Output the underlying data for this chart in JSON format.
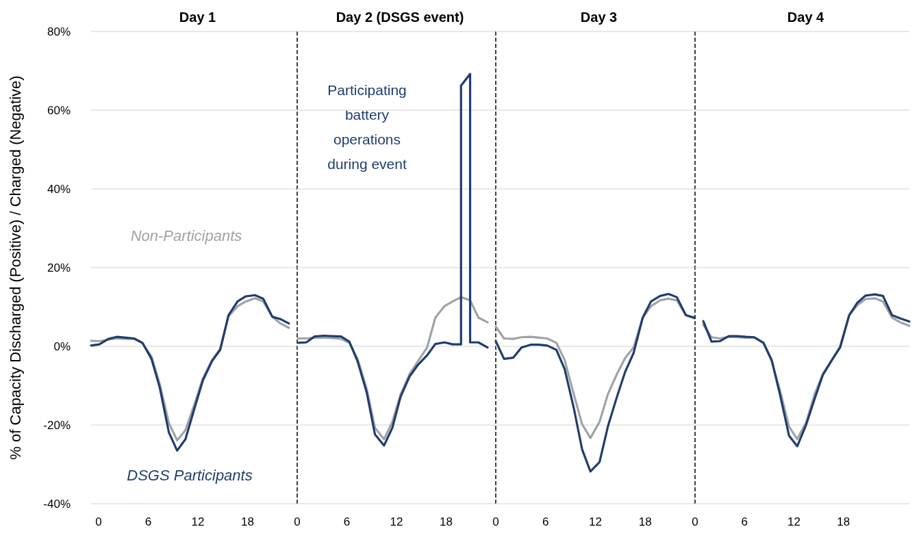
{
  "chart_data": [
    {
      "type": "line",
      "title": "Day 1",
      "ylabel": "% of Capacity Discharged (Positive) / Charged (Negative)",
      "x": [
        -0.9,
        0.1,
        1.2,
        2.2,
        3.3,
        4.3,
        5.3,
        6.4,
        7.4,
        8.5,
        9.5,
        10.5,
        11.6,
        12.6,
        13.7,
        14.7,
        15.7,
        16.8,
        17.8,
        18.9,
        19.9,
        21.0,
        22.0,
        23.0
      ],
      "xlim": [
        -0.9,
        24
      ],
      "xticks": [
        0,
        6,
        12,
        18
      ],
      "ylim": [
        -40,
        80
      ],
      "yticks": [
        {
          "value": -40,
          "label": "-40%"
        },
        {
          "value": -20,
          "label": "-20%"
        },
        {
          "value": 0,
          "label": "0%"
        },
        {
          "value": 20,
          "label": "20%"
        },
        {
          "value": 40,
          "label": "40%"
        },
        {
          "value": 60,
          "label": "60%"
        },
        {
          "value": 80,
          "label": "80%"
        }
      ],
      "grid": "y",
      "marker": "none",
      "line_style": "solid",
      "series": [
        {
          "color": "#9ea3a8",
          "values": [
            1.4,
            1.3,
            1.7,
            2.0,
            1.9,
            1.9,
            0.8,
            -2.6,
            -9.6,
            -19.5,
            -23.9,
            -21.3,
            -14.6,
            -8.2,
            -3.5,
            -0.6,
            7.6,
            10.2,
            11.4,
            12.2,
            11.4,
            7.5,
            5.8,
            4.7
          ]
        },
        {
          "color": "#1f3d6e",
          "values": [
            0.2,
            0.5,
            1.9,
            2.4,
            2.2,
            2.0,
            0.9,
            -3.2,
            -10.5,
            -21.9,
            -26.5,
            -23.6,
            -15.7,
            -8.7,
            -3.8,
            -0.9,
            7.9,
            11.4,
            12.7,
            13.0,
            12.1,
            7.5,
            6.9,
            5.8
          ]
        }
      ],
      "ref_lines": [
        {
          "axis": "x",
          "value": 24,
          "color": "#000000",
          "line_style": "dashed"
        }
      ],
      "annotations": [
        "Non-Participants",
        "DSGS Participants"
      ]
    },
    {
      "type": "line",
      "title": "Day 2 (DSGS event)",
      "x": [
        0.1,
        1.1,
        2.1,
        3.2,
        4.2,
        5.3,
        6.3,
        7.3,
        8.4,
        9.4,
        10.5,
        11.5,
        12.5,
        13.6,
        14.6,
        15.7,
        16.7,
        17.8,
        18.8,
        19.8,
        20.9,
        21.9,
        23.0
      ],
      "xlim": [
        0,
        24
      ],
      "xticks": [
        0,
        6,
        12,
        18
      ],
      "ylim": [
        -40,
        80
      ],
      "yticks": [
        -40,
        -20,
        0,
        20,
        40,
        60,
        80
      ],
      "tick_labels": "x",
      "grid": "y",
      "marker": "none",
      "line_style": "solid",
      "series": [
        {
          "color": "#9ea3a8",
          "values": [
            2.0,
            2.0,
            2.2,
            2.2,
            2.1,
            1.9,
            0.9,
            -3.2,
            -10.8,
            -20.7,
            -23.6,
            -19.2,
            -12.2,
            -7.0,
            -3.8,
            -0.3,
            7.3,
            10.2,
            11.4,
            12.5,
            11.7,
            7.3,
            6.1
          ]
        },
        {
          "color": "#1f3d6e",
          "x": [
            0.1,
            1.1,
            2.1,
            3.2,
            4.2,
            5.3,
            6.3,
            7.3,
            8.4,
            9.4,
            10.5,
            11.5,
            12.5,
            13.6,
            14.6,
            15.7,
            16.7,
            17.8,
            18.8,
            19.8,
            19.8,
            20.9,
            20.9,
            21.9,
            23.0
          ],
          "values": [
            0.9,
            1.0,
            2.5,
            2.7,
            2.6,
            2.5,
            1.2,
            -3.8,
            -11.7,
            -22.4,
            -25.2,
            -20.7,
            -12.8,
            -7.6,
            -4.7,
            -2.3,
            0.6,
            1.0,
            0.5,
            0.5,
            66.2,
            69.2,
            1.0,
            1.0,
            -0.3
          ]
        }
      ],
      "ref_lines": [
        {
          "axis": "x",
          "value": 24,
          "color": "#000000",
          "line_style": "dashed"
        }
      ],
      "annotations": [
        "Participating\nbattery\noperations\nduring event"
      ]
    },
    {
      "type": "line",
      "title": "Day 3",
      "x": [
        0.0,
        1.0,
        2.1,
        3.1,
        4.2,
        5.2,
        6.2,
        7.3,
        8.3,
        9.4,
        10.4,
        11.4,
        12.5,
        13.5,
        14.6,
        15.6,
        16.6,
        17.7,
        18.7,
        19.8,
        20.8,
        21.8,
        22.9,
        23.9
      ],
      "xlim": [
        0,
        24
      ],
      "xticks": [
        0,
        6,
        12,
        18
      ],
      "ylim": [
        -40,
        80
      ],
      "yticks": [
        -40,
        -20,
        0,
        20,
        40,
        60,
        80
      ],
      "tick_labels": "x",
      "grid": "y",
      "marker": "none",
      "line_style": "solid",
      "series": [
        {
          "color": "#9ea3a8",
          "values": [
            5.0,
            2.0,
            1.9,
            2.3,
            2.4,
            2.2,
            2.0,
            0.9,
            -3.5,
            -12.2,
            -19.8,
            -23.3,
            -19.2,
            -12.2,
            -7.0,
            -2.9,
            -0.3,
            7.3,
            10.2,
            11.7,
            12.1,
            11.7,
            7.9,
            7.1
          ]
        },
        {
          "color": "#1f3d6e",
          "values": [
            1.3,
            -3.2,
            -2.9,
            -0.3,
            0.4,
            0.4,
            0.2,
            -0.9,
            -5.8,
            -15.7,
            -26.2,
            -31.8,
            -29.4,
            -20.4,
            -12.8,
            -6.4,
            -1.7,
            7.3,
            11.4,
            12.8,
            13.3,
            12.5,
            7.9,
            7.3
          ]
        }
      ],
      "ref_lines": [
        {
          "axis": "x",
          "value": 24,
          "color": "#000000",
          "line_style": "dashed"
        }
      ]
    },
    {
      "type": "line",
      "title": "Day 4",
      "x": [
        1.0,
        2.0,
        3.0,
        4.1,
        5.1,
        6.2,
        7.2,
        8.3,
        9.3,
        10.3,
        11.4,
        12.4,
        13.5,
        14.5,
        15.5,
        16.6,
        17.6,
        18.7,
        19.7,
        20.7,
        21.8,
        22.8,
        23.9,
        24.9,
        26.0
      ],
      "xlim": [
        0,
        26
      ],
      "xticks": [
        0,
        6,
        12,
        18
      ],
      "ylim": [
        -40,
        80
      ],
      "yticks": [
        -40,
        -20,
        0,
        20,
        40,
        60,
        80
      ],
      "tick_labels": "x",
      "grid": "y",
      "marker": "none",
      "line_style": "solid",
      "series": [
        {
          "color": "#9ea3a8",
          "values": [
            5.5,
            2.3,
            2.0,
            2.4,
            2.3,
            2.2,
            2.2,
            0.9,
            -3.8,
            -11.1,
            -20.4,
            -23.6,
            -19.2,
            -12.2,
            -7.0,
            -3.5,
            0,
            7.9,
            10.5,
            12.0,
            12.2,
            11.4,
            7.3,
            6.1,
            5.2
          ]
        },
        {
          "color": "#1f3d6e",
          "values": [
            6.4,
            1.2,
            1.3,
            2.6,
            2.6,
            2.4,
            2.3,
            0.9,
            -3.5,
            -12.2,
            -22.7,
            -25.4,
            -19.8,
            -13.4,
            -7.3,
            -3.5,
            -0.3,
            7.9,
            11.1,
            12.9,
            13.2,
            12.8,
            7.9,
            7.1,
            6.3
          ]
        }
      ]
    }
  ]
}
